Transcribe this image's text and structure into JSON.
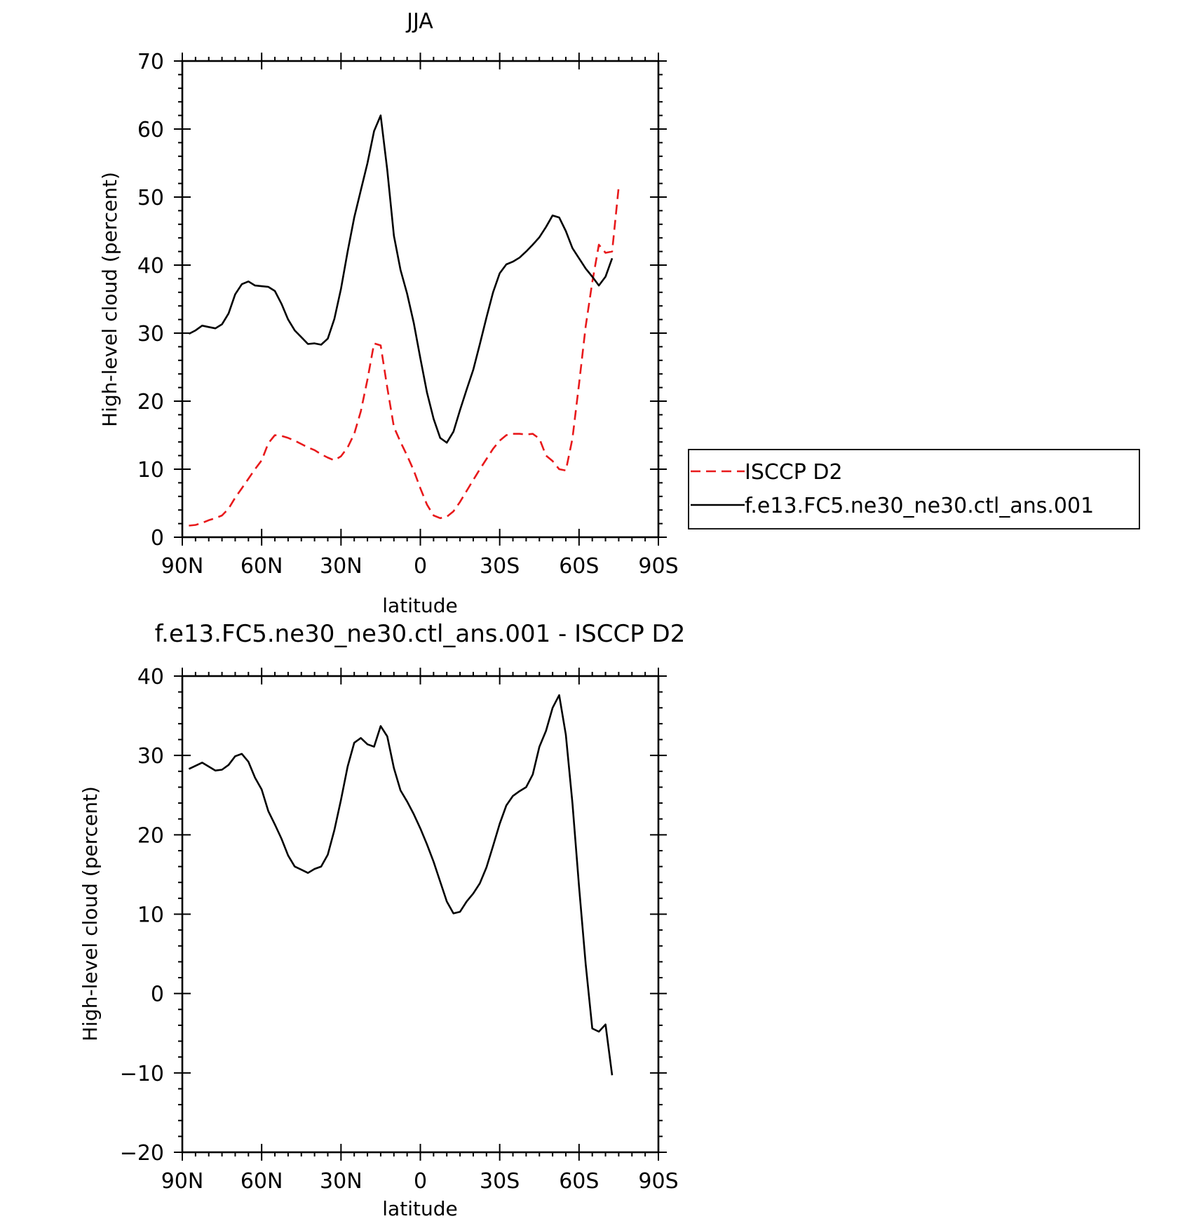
{
  "chart_data": [
    {
      "type": "line",
      "title": "JJA",
      "xlabel": "latitude",
      "ylabel": "High-level cloud (percent)",
      "xlim": [
        90,
        -90
      ],
      "ylim": [
        0,
        70
      ],
      "x_tick_values": [
        90,
        60,
        30,
        0,
        -30,
        -60,
        -90
      ],
      "x_tick_labels": [
        "90N",
        "60N",
        "30N",
        "0",
        "30S",
        "60S",
        "90S"
      ],
      "y_ticks": [
        0,
        10,
        20,
        30,
        40,
        50,
        60,
        70
      ],
      "legend_position": "right",
      "series": [
        {
          "name": "ISCCP D2",
          "color": "#e8191b",
          "dash": "dashed",
          "x": [
            87.5,
            85,
            82.5,
            80,
            77.5,
            75,
            72.5,
            70,
            67.5,
            65,
            62.5,
            60,
            57.5,
            55,
            52.5,
            50,
            47.5,
            45,
            42.5,
            40,
            37.5,
            35,
            32.5,
            30,
            27.5,
            25,
            22.5,
            20,
            17.5,
            15,
            12.5,
            10,
            7.5,
            5,
            2.5,
            0,
            -2.5,
            -5,
            -7.5,
            -10,
            -12.5,
            -15,
            -17.5,
            -20,
            -22.5,
            -25,
            -27.5,
            -30,
            -32.5,
            -35,
            -37.5,
            -40,
            -42.5,
            -45,
            -47.5,
            -50,
            -52.5,
            -55,
            -57.5,
            -60,
            -62.5,
            -65,
            -67.5,
            -70,
            -72.5,
            -75,
            -77.5,
            -80,
            -82.5,
            -85,
            -87.5
          ],
          "y": [
            1.7,
            1.8,
            2.1,
            2.5,
            2.8,
            3.2,
            4.2,
            5.8,
            7.2,
            8.6,
            10.0,
            11.3,
            13.8,
            15.0,
            14.9,
            14.6,
            14.2,
            13.7,
            13.2,
            12.8,
            12.2,
            11.7,
            11.3,
            11.9,
            13.2,
            15.2,
            18.5,
            23.2,
            28.5,
            28.2,
            22.0,
            16.2,
            14.0,
            12.0,
            9.8,
            7.2,
            4.8,
            3.2,
            2.8,
            3.0,
            3.8,
            5.2,
            6.8,
            8.4,
            10.0,
            11.5,
            13.0,
            14.2,
            15.0,
            15.2,
            15.2,
            15.1,
            15.2,
            14.5,
            12.0,
            11.2,
            10.0,
            9.8,
            14.5,
            22.5,
            31.0,
            37.5,
            43.0,
            41.8,
            42.0,
            51.5,
            null,
            null,
            null,
            null,
            null
          ]
        },
        {
          "name": "f.e13.FC5.ne30_ne30.ctl_ans.001",
          "color": "#000000",
          "dash": "solid",
          "x": [
            87.5,
            85,
            82.5,
            80,
            77.5,
            75,
            72.5,
            70,
            67.5,
            65,
            62.5,
            60,
            57.5,
            55,
            52.5,
            50,
            47.5,
            45,
            42.5,
            40,
            37.5,
            35,
            32.5,
            30,
            27.5,
            25,
            22.5,
            20,
            17.5,
            15,
            12.5,
            10,
            7.5,
            5,
            2.5,
            0,
            -2.5,
            -5,
            -7.5,
            -10,
            -12.5,
            -15,
            -17.5,
            -20,
            -22.5,
            -25,
            -27.5,
            -30,
            -32.5,
            -35,
            -37.5,
            -40,
            -42.5,
            -45,
            -47.5,
            -50,
            -52.5,
            -55,
            -57.5,
            -60,
            -62.5,
            -65,
            -67.5,
            -70,
            -72.5,
            -75,
            -77.5,
            -80,
            -82.5,
            -85,
            -87.5
          ],
          "y": [
            29.9,
            30.4,
            31.1,
            30.9,
            30.7,
            31.3,
            32.9,
            35.7,
            37.2,
            37.6,
            37.0,
            36.9,
            36.8,
            36.2,
            34.3,
            32.0,
            30.4,
            29.4,
            28.4,
            28.5,
            28.3,
            29.2,
            32.1,
            36.5,
            42.0,
            47.0,
            51.0,
            55.0,
            59.7,
            62.0,
            54.0,
            44.3,
            39.3,
            35.8,
            31.5,
            26.3,
            21.3,
            17.4,
            14.6,
            13.9,
            15.5,
            18.7,
            21.7,
            24.6,
            28.4,
            32.3,
            36.0,
            38.8,
            40.1,
            40.5,
            41.1,
            42.0,
            43.0,
            44.1,
            45.6,
            47.3,
            47.0,
            45.0,
            42.5,
            41.0,
            39.5,
            38.3,
            37.0,
            38.3,
            41.0,
            null,
            null,
            null,
            null,
            null,
            null
          ]
        }
      ]
    },
    {
      "type": "line",
      "title": "f.e13.FC5.ne30_ne30.ctl_ans.001 - ISCCP D2",
      "xlabel": "latitude",
      "ylabel": "High-level cloud (percent)",
      "xlim": [
        90,
        -90
      ],
      "ylim": [
        -20,
        40
      ],
      "x_tick_values": [
        90,
        60,
        30,
        0,
        -30,
        -60,
        -90
      ],
      "x_tick_labels": [
        "90N",
        "60N",
        "30N",
        "0",
        "30S",
        "60S",
        "90S"
      ],
      "y_ticks": [
        -20,
        -10,
        0,
        10,
        20,
        30,
        40
      ],
      "series": [
        {
          "color": "#000000",
          "dash": "solid",
          "x": [
            87.5,
            85,
            82.5,
            80,
            77.5,
            75,
            72.5,
            70,
            67.5,
            65,
            62.5,
            60,
            57.5,
            55,
            52.5,
            50,
            47.5,
            45,
            42.5,
            40,
            37.5,
            35,
            32.5,
            30,
            27.5,
            25,
            22.5,
            20,
            17.5,
            15,
            12.5,
            10,
            7.5,
            5,
            2.5,
            0,
            -2.5,
            -5,
            -7.5,
            -10,
            -12.5,
            -15,
            -17.5,
            -20,
            -22.5,
            -25,
            -27.5,
            -30,
            -32.5,
            -35,
            -37.5,
            -40,
            -42.5,
            -45,
            -47.5,
            -50,
            -52.5,
            -55,
            -57.5,
            -60,
            -62.5,
            -65,
            -67.5,
            -70,
            -72.5,
            -75
          ],
          "y": [
            28.3,
            28.7,
            29.1,
            28.6,
            28.1,
            28.2,
            28.8,
            29.9,
            30.2,
            29.2,
            27.2,
            25.7,
            23.0,
            21.3,
            19.5,
            17.4,
            16.0,
            15.6,
            15.2,
            15.7,
            16.0,
            17.5,
            20.6,
            24.4,
            28.6,
            31.6,
            32.2,
            31.4,
            31.1,
            33.7,
            32.4,
            28.4,
            25.6,
            24.2,
            22.6,
            20.8,
            18.8,
            16.6,
            14.1,
            11.6,
            10.1,
            10.3,
            11.6,
            12.6,
            13.9,
            15.9,
            18.6,
            21.4,
            23.7,
            24.9,
            25.5,
            26.0,
            27.6,
            31.1,
            33.1,
            36.0,
            37.6,
            32.6,
            24.0,
            13.5,
            3.7,
            -4.4,
            -4.8,
            -3.9,
            -10.3,
            null
          ]
        }
      ]
    }
  ]
}
